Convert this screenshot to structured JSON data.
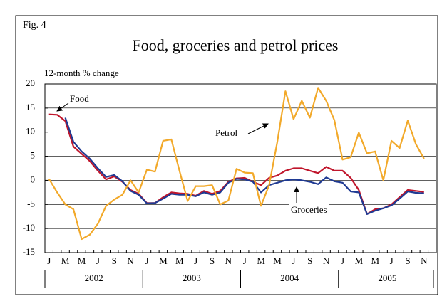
{
  "chart_data": {
    "type": "line",
    "figure_label": "Fig. 4",
    "title": "Food, groceries and petrol prices",
    "y_axis_label": "12-month % change",
    "categories": [
      "J",
      null,
      "M",
      null,
      "M",
      null,
      "J",
      null,
      "S",
      null,
      "N",
      null,
      "J",
      null,
      "M",
      null,
      "M",
      null,
      "J",
      null,
      "S",
      null,
      "N",
      null,
      "J",
      null,
      "M",
      null,
      "M",
      null,
      "J",
      null,
      "S",
      null,
      "N",
      null,
      "J",
      null,
      "M",
      null,
      "M",
      null,
      "J",
      null,
      "S",
      null,
      "N",
      null
    ],
    "year_labels": [
      "2002",
      "2003",
      "2004",
      "2005"
    ],
    "ylim": [
      -15,
      20
    ],
    "yticks": [
      -15,
      -10,
      -5,
      0,
      5,
      10,
      15,
      20
    ],
    "grid": true,
    "series": [
      {
        "name": "Food",
        "color": "#c0162c",
        "values": [
          13.7,
          13.6,
          12.3,
          7,
          5.5,
          4,
          2,
          0.2,
          0.8,
          -0.3,
          -2,
          -2.8,
          -4.7,
          -4.7,
          -3.5,
          -2.5,
          -2.7,
          -2.8,
          -3.2,
          -2.2,
          -2.8,
          -2.2,
          -0.3,
          0.4,
          0.5,
          -0.3,
          -1,
          0.5,
          1,
          2,
          2.5,
          2.5,
          2,
          1.5,
          2.8,
          2,
          2,
          0.5,
          -2,
          -7,
          -6,
          -5.8,
          -5,
          -3.5,
          -2,
          -2.2,
          -2.4,
          null
        ]
      },
      {
        "name": "Groceries",
        "color": "#1f3a93",
        "values": [
          null,
          null,
          13,
          8,
          6,
          4.5,
          2.5,
          0.7,
          1.1,
          -0.2,
          -2.2,
          -3,
          -4.8,
          -4.7,
          -3.8,
          -2.8,
          -3,
          -3,
          -3.3,
          -2.5,
          -3,
          -2.5,
          -0.5,
          0.3,
          0.2,
          -0.3,
          -2.5,
          -1,
          -0.5,
          0,
          0.2,
          0,
          -0.3,
          -0.8,
          0.6,
          -0.2,
          -0.5,
          -2.3,
          -2.5,
          -7,
          -6.3,
          -5.8,
          -5.2,
          -3.8,
          -2.3,
          -2.6,
          -2.7,
          null
        ]
      },
      {
        "name": "Petrol",
        "color": "#f2a92a",
        "values": [
          0.3,
          -2.5,
          -5,
          -6,
          -12.2,
          -11.3,
          -9,
          -5.3,
          -4,
          -3,
          0,
          -2.5,
          2.2,
          1.8,
          8.2,
          8.5,
          2,
          -4.3,
          -1.2,
          -1.2,
          -1,
          -5,
          -4.2,
          2.4,
          1.6,
          1.5,
          -5.3,
          -1,
          8,
          18.5,
          12.7,
          16.5,
          13,
          19.2,
          16.5,
          12.5,
          4.3,
          4.8,
          9.9,
          5.6,
          6,
          0,
          8.2,
          6.7,
          12.4,
          7.5,
          4.5,
          null
        ]
      }
    ]
  }
}
